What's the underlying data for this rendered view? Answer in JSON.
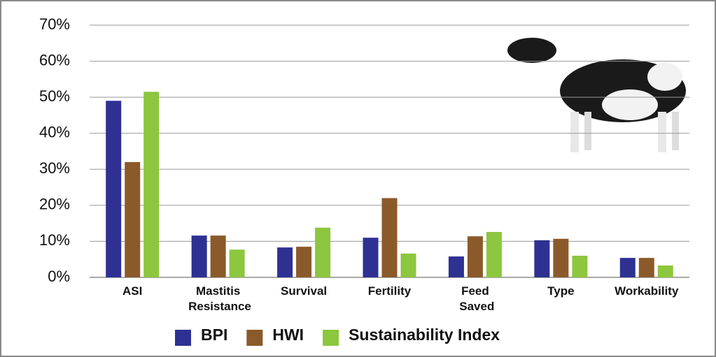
{
  "chart_data": {
    "type": "bar",
    "categories": [
      "ASI",
      "Mastitis Resistance",
      "Survival",
      "Fertility",
      "Feed Saved",
      "Type",
      "Workability"
    ],
    "series": [
      {
        "name": "BPI",
        "color": "#2e3192",
        "values": [
          49,
          11.6,
          8.3,
          11,
          5.8,
          10.3,
          5.4
        ]
      },
      {
        "name": "HWI",
        "color": "#8b5a2b",
        "values": [
          32,
          11.6,
          8.5,
          22,
          11.4,
          10.7,
          5.4
        ]
      },
      {
        "name": "Sustainability Index",
        "color": "#8dc63f",
        "values": [
          51.5,
          7.7,
          13.8,
          6.6,
          12.6,
          6,
          3.3
        ]
      }
    ],
    "ylim": [
      0,
      70
    ],
    "yticks": [
      {
        "value": 0,
        "label": "0%"
      },
      {
        "value": 10,
        "label": "10%"
      },
      {
        "value": 20,
        "label": "20%"
      },
      {
        "value": 30,
        "label": "30%"
      },
      {
        "value": 40,
        "label": "40%"
      },
      {
        "value": 50,
        "label": "50%"
      },
      {
        "value": 60,
        "label": "60%"
      },
      {
        "value": 70,
        "label": "70%"
      }
    ],
    "grid": true
  }
}
